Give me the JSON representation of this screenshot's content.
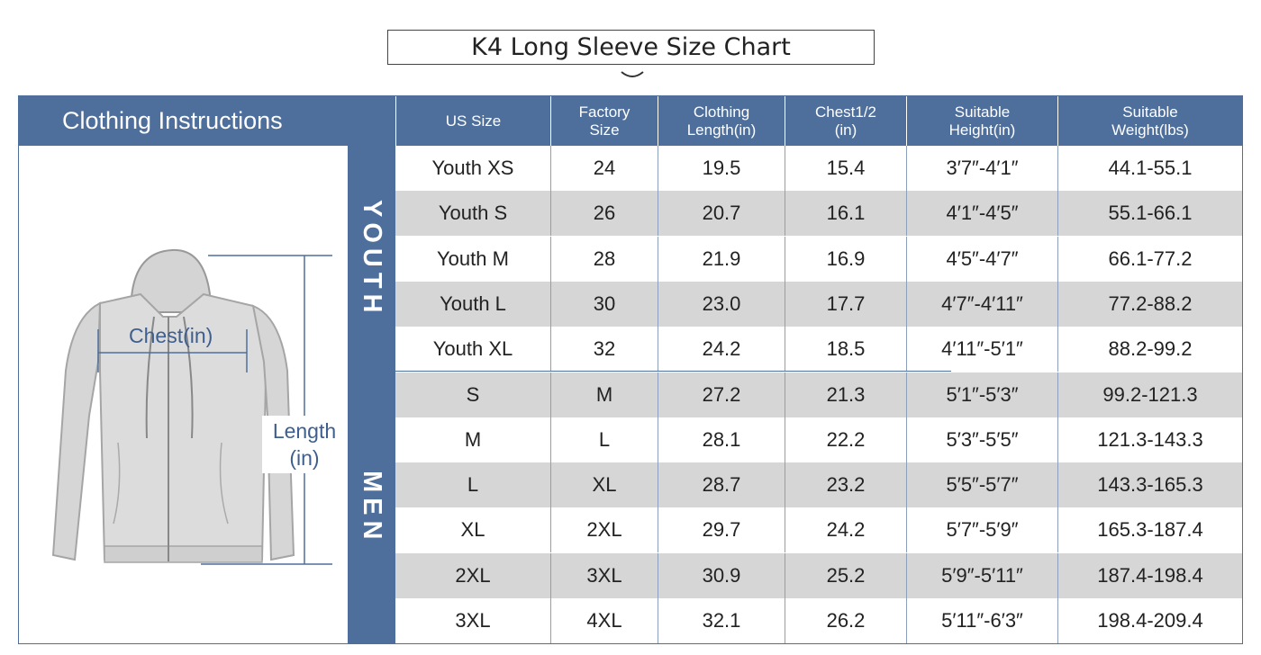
{
  "title": "K4 Long Sleeve Size Chart",
  "header": {
    "left": "Clothing Instructions",
    "columns": [
      "US Size",
      "Factory\nSize",
      "Clothing\nLength(in)",
      "Chest1/2\n(in)",
      "Suitable\nHeight(in)",
      "Suitable\nWeight(lbs)"
    ]
  },
  "figure": {
    "chest_label": "Chest(in)",
    "length_label": "Length\n(in)"
  },
  "groups": {
    "youth": "YOUTH",
    "men": "MEN"
  },
  "rows": [
    [
      "Youth XS",
      "24",
      "19.5",
      "15.4",
      "3′7″-4′1″",
      "44.1-55.1"
    ],
    [
      "Youth S",
      "26",
      "20.7",
      "16.1",
      "4′1″-4′5″",
      "55.1-66.1"
    ],
    [
      "Youth M",
      "28",
      "21.9",
      "16.9",
      "4′5″-4′7″",
      "66.1-77.2"
    ],
    [
      "Youth L",
      "30",
      "23.0",
      "17.7",
      "4′7″-4′11″",
      "77.2-88.2"
    ],
    [
      "Youth XL",
      "32",
      "24.2",
      "18.5",
      "4′11″-5′1″",
      "88.2-99.2"
    ],
    [
      "S",
      "M",
      "27.2",
      "21.3",
      "5′1″-5′3″",
      "99.2-121.3"
    ],
    [
      "M",
      "L",
      "28.1",
      "22.2",
      "5′3″-5′5″",
      "121.3-143.3"
    ],
    [
      "L",
      "XL",
      "28.7",
      "23.2",
      "5′5″-5′7″",
      "143.3-165.3"
    ],
    [
      "XL",
      "2XL",
      "29.7",
      "24.2",
      "5′7″-5′9″",
      "165.3-187.4"
    ],
    [
      "2XL",
      "3XL",
      "30.9",
      "25.2",
      "5′9″-5′11″",
      "187.4-198.4"
    ],
    [
      "3XL",
      "4XL",
      "32.1",
      "26.2",
      "5′11″-6′3″",
      "198.4-209.4"
    ]
  ],
  "colors": {
    "header_bg": "#4e6f9b",
    "shade": "#d6d6d6",
    "hoodie": "#d9d9d9"
  }
}
